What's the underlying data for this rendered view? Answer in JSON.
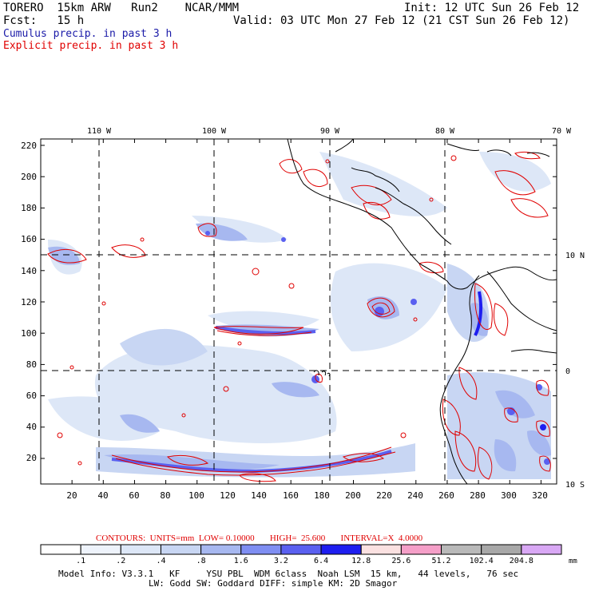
{
  "header": {
    "model": "TORERO  15km ARW   Run2    NCAR/MMM",
    "init": "Init: 12 UTC Sun 26 Feb 12",
    "fcst": "Fcst:   15 h",
    "valid": "Valid: 03 UTC Mon 27 Feb 12 (21 CST Sun 26 Feb 12)",
    "line_cumulus": "Cumulus precip. in past 3 h",
    "line_explicit": "Explicit precip. in past 3 h"
  },
  "colors": {
    "cumulus_text": "#1a1aa8",
    "explicit_text": "#e00000",
    "contour": "#e00000",
    "coast": "#000000",
    "grid": "#000000"
  },
  "map": {
    "lon_labels": [
      "110 W",
      "100 W",
      "90 W",
      "80 W",
      "70 W"
    ],
    "lat_labels": [
      "10 N",
      "0",
      "10 S"
    ],
    "y_ticks": [
      "220",
      "200",
      "180",
      "160",
      "140",
      "120",
      "100",
      "80",
      "60",
      "40",
      "20"
    ],
    "x_ticks": [
      "20",
      "40",
      "60",
      "80",
      "100",
      "120",
      "140",
      "160",
      "180",
      "200",
      "220",
      "240",
      "260",
      "280",
      "300",
      "320"
    ]
  },
  "legend": {
    "contours_text": "CONTOURS:  UNITS=mm  LOW= 0.10000       HIGH=  25.600       INTERVAL=X  4.0000",
    "bins": [
      {
        "label": ".1",
        "color": "#ffffff"
      },
      {
        "label": ".2",
        "color": "#eef3fb"
      },
      {
        "label": ".4",
        "color": "#dde7f7"
      },
      {
        "label": ".8",
        "color": "#c8d6f3"
      },
      {
        "label": "1.6",
        "color": "#a7b8f0"
      },
      {
        "label": "3.2",
        "color": "#7f8ef2"
      },
      {
        "label": "6.4",
        "color": "#5a60f0"
      },
      {
        "label": "12.8",
        "color": "#1e1ef0"
      },
      {
        "label": "25.6",
        "color": "#fbe1e1"
      },
      {
        "label": "51.2",
        "color": "#f59fc8"
      },
      {
        "label": "102.4",
        "color": "#b9b9b9"
      },
      {
        "label": "204.8",
        "color": "#a8a8a8"
      },
      {
        "label": "",
        "color": "#d9a8f5"
      }
    ],
    "units": "mm"
  },
  "footer": {
    "line1": "Model Info: V3.3.1   KF     YSU PBL  WDM 6class  Noah LSM  15 km,   44 levels,   76 sec",
    "line2": "LW: Godd SW: Goddard DIFF: simple KM: 2D Smagor"
  }
}
